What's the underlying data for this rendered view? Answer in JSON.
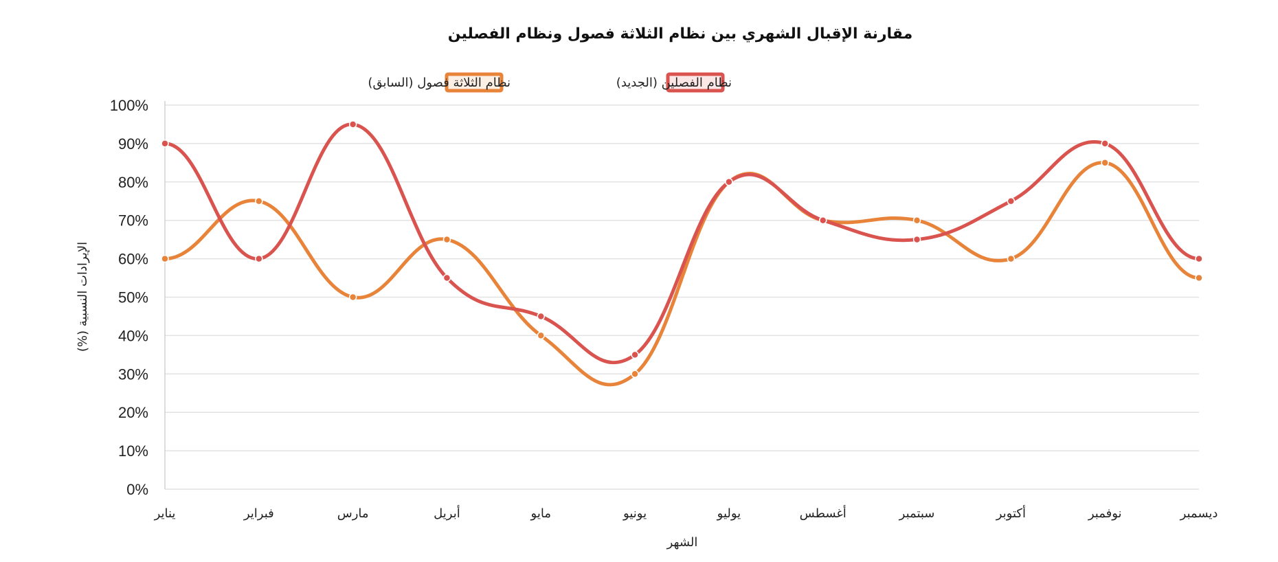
{
  "chart_data": {
    "type": "line",
    "title": "مقارنة الإقبال الشهري بين نظام الثلاثة فصول ونظام الفصلين",
    "xlabel": "الشهر",
    "ylabel": "الإيرادات النسبية (%)",
    "categories": [
      "يناير",
      "فبراير",
      "مارس",
      "أبريل",
      "مايو",
      "يونيو",
      "يوليو",
      "أغسطس",
      "سبتمبر",
      "أكتوبر",
      "نوفمبر",
      "ديسمبر"
    ],
    "yticks": [
      "0%",
      "10%",
      "20%",
      "30%",
      "40%",
      "50%",
      "60%",
      "70%",
      "80%",
      "90%",
      "100%"
    ],
    "ylim": [
      0,
      100
    ],
    "grid": true,
    "legend_position": "top-center",
    "series": [
      {
        "name": "نظام الثلاثة فصول (السابق)",
        "color": "#e8833a",
        "fill": "#fcefe4",
        "values": [
          60,
          75,
          50,
          65,
          40,
          30,
          80,
          70,
          70,
          60,
          85,
          55
        ]
      },
      {
        "name": "نظام الفصلين (الجديد)",
        "color": "#d9534f",
        "fill": "#fbe7e6",
        "values": [
          90,
          60,
          95,
          55,
          45,
          35,
          80,
          70,
          65,
          75,
          90,
          60
        ]
      }
    ]
  }
}
